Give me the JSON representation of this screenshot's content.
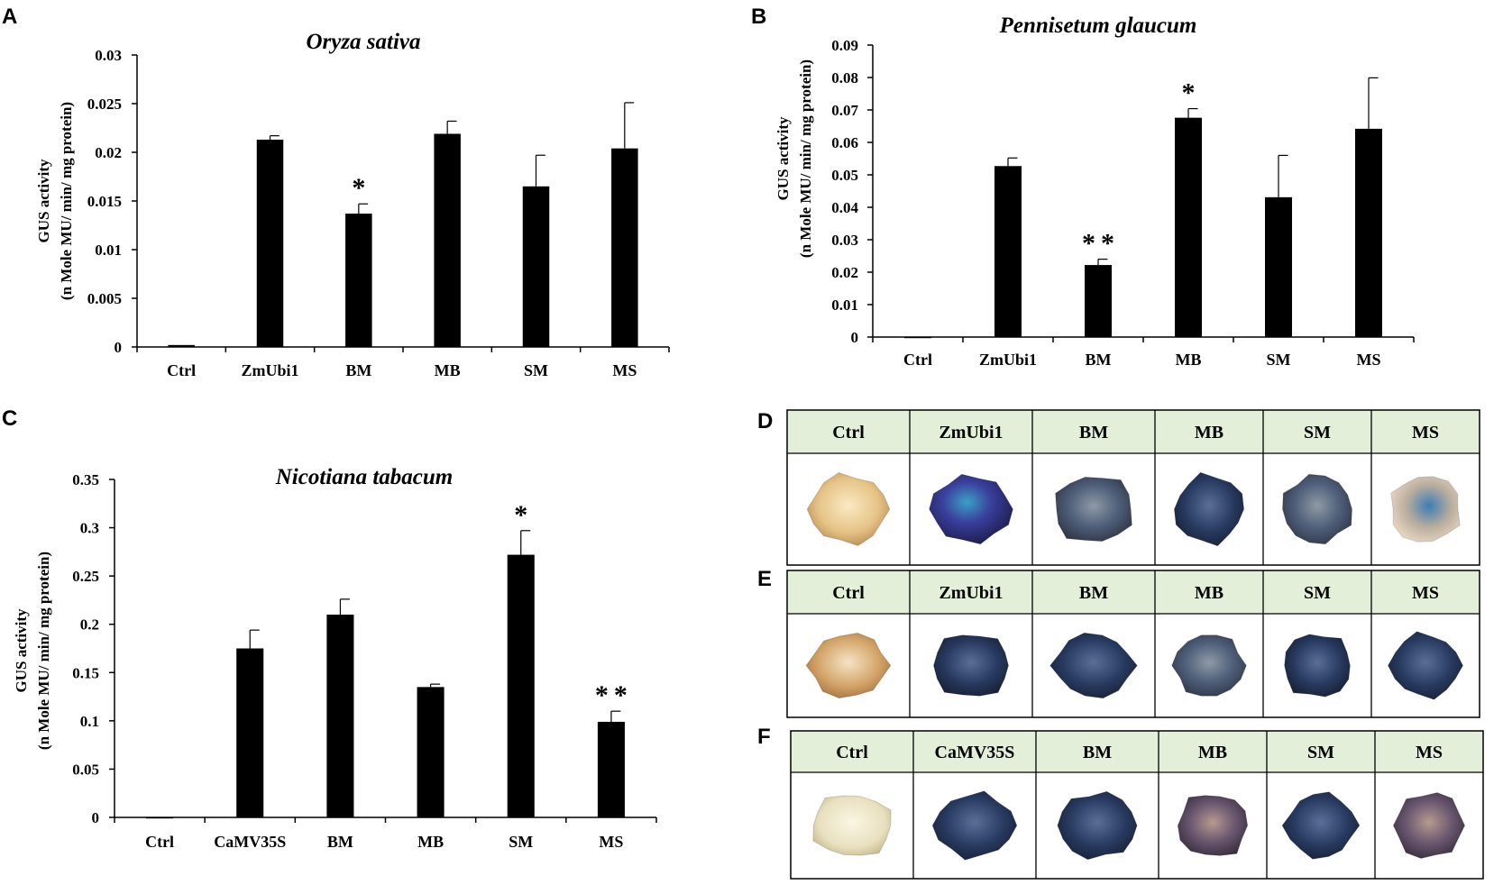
{
  "panel_letters": {
    "a": "A",
    "b": "B",
    "c": "C",
    "d": "D",
    "e": "E",
    "f": "F"
  },
  "chart_data": [
    {
      "type": "bar",
      "panel": "A",
      "title": "Oryza sativa",
      "ylabel_line1": "GUS activity",
      "ylabel_line2": "(n Mole MU/ min/ mg protein)",
      "xlabel": "",
      "categories": [
        "Ctrl",
        "ZmUbi1",
        "BM",
        "MB",
        "SM",
        "MS"
      ],
      "values": [
        0.0002,
        0.0213,
        0.0137,
        0.0219,
        0.0165,
        0.0204
      ],
      "errors": [
        0,
        0.0004,
        0.001,
        0.0013,
        0.0032,
        0.0047
      ],
      "significance": [
        "",
        "",
        "*",
        "",
        "",
        ""
      ],
      "ylim": [
        0,
        0.03
      ],
      "yticks": [
        0,
        0.005,
        0.01,
        0.015,
        0.02,
        0.025,
        0.03
      ],
      "ytick_labels": [
        "0",
        "0.005",
        "0.01",
        "0.015",
        "0.02",
        "0.025",
        "0.03"
      ],
      "color": "#000000"
    },
    {
      "type": "bar",
      "panel": "B",
      "title": "Pennisetum glaucum",
      "ylabel_line1": "GUS activity",
      "ylabel_line2": "(n Mole MU/ min/ mg protein)",
      "xlabel": "",
      "categories": [
        "Ctrl",
        "ZmUbi1",
        "BM",
        "MB",
        "SM",
        "MS"
      ],
      "values": [
        0,
        0.0527,
        0.0222,
        0.0676,
        0.0431,
        0.0642
      ],
      "errors": [
        0,
        0.0025,
        0.0018,
        0.0028,
        0.0129,
        0.0157
      ],
      "significance": [
        "",
        "",
        "**",
        "*",
        "",
        ""
      ],
      "ylim": [
        0,
        0.09
      ],
      "yticks": [
        0,
        0.01,
        0.02,
        0.03,
        0.04,
        0.05,
        0.06,
        0.07,
        0.08,
        0.09
      ],
      "ytick_labels": [
        "0",
        "0.01",
        "0.02",
        "0.03",
        "0.04",
        "0.05",
        "0.06",
        "0.07",
        "0.08",
        "0.09"
      ],
      "color": "#000000"
    },
    {
      "type": "bar",
      "panel": "C",
      "title": "Nicotiana tabacum",
      "ylabel_line1": "GUS activity",
      "ylabel_line2": "(n Mole MU/ min/ mg protein)",
      "xlabel": "",
      "categories": [
        "Ctrl",
        "CaMV35S",
        "BM",
        "MB",
        "SM",
        "MS"
      ],
      "values": [
        0,
        0.175,
        0.21,
        0.135,
        0.272,
        0.099
      ],
      "errors": [
        0,
        0.019,
        0.016,
        0.003,
        0.025,
        0.011
      ],
      "significance": [
        "",
        "",
        "",
        "",
        "*",
        "**"
      ],
      "ylim": [
        0,
        0.35
      ],
      "yticks": [
        0,
        0.05,
        0.1,
        0.15,
        0.2,
        0.25,
        0.3,
        0.35
      ],
      "ytick_labels": [
        "0",
        "0.05",
        "0.1",
        "0.15",
        "0.2",
        "0.25",
        "0.3",
        "0.35"
      ],
      "color": "#000000"
    }
  ],
  "image_tables": [
    {
      "panel": "D",
      "headers": [
        "Ctrl",
        "ZmUbi1",
        "BM",
        "MB",
        "SM",
        "MS"
      ]
    },
    {
      "panel": "E",
      "headers": [
        "Ctrl",
        "ZmUbi1",
        "BM",
        "MB",
        "SM",
        "MS"
      ]
    },
    {
      "panel": "F",
      "headers": [
        "Ctrl",
        "CaMV35S",
        "BM",
        "MB",
        "SM",
        "MS"
      ]
    }
  ],
  "colors": {
    "header_bg": "#e3efd9",
    "bar": "#000000",
    "ctrl_tissue": "#e9c98f",
    "blue_tissue": "#2f3f7a"
  }
}
